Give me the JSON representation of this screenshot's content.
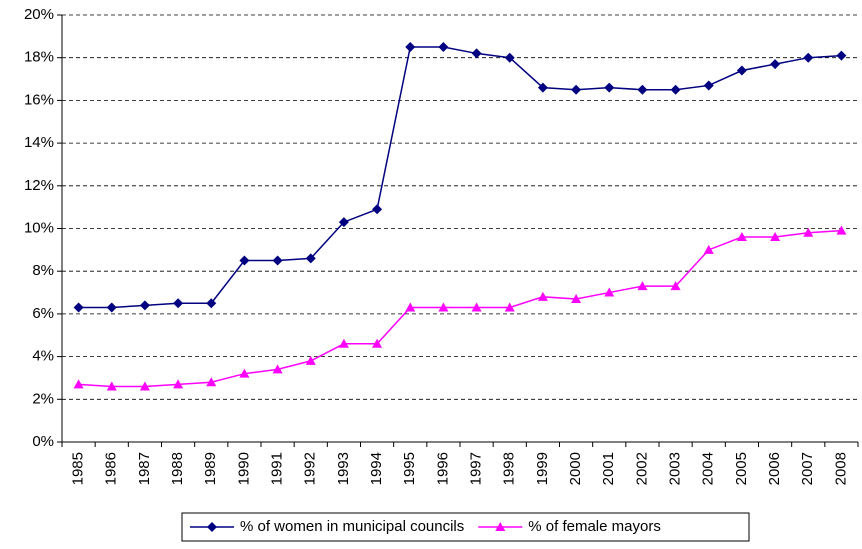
{
  "chart_data": {
    "type": "line",
    "categories": [
      "1985",
      "1986",
      "1987",
      "1988",
      "1989",
      "1990",
      "1991",
      "1992",
      "1993",
      "1994",
      "1995",
      "1996",
      "1997",
      "1998",
      "1999",
      "2000",
      "2001",
      "2002",
      "2003",
      "2004",
      "2005",
      "2006",
      "2007",
      "2008"
    ],
    "series": [
      {
        "name": "% of women in municipal councils",
        "color": "#000080",
        "marker": "diamond",
        "values": [
          6.3,
          6.3,
          6.4,
          6.5,
          6.5,
          8.5,
          8.5,
          8.6,
          10.3,
          10.9,
          18.5,
          18.5,
          18.2,
          18.0,
          16.6,
          16.5,
          16.6,
          16.5,
          16.5,
          16.7,
          17.4,
          17.7,
          18.0,
          18.1
        ]
      },
      {
        "name": "% of female mayors",
        "color": "#ff00ff",
        "marker": "triangle",
        "values": [
          2.7,
          2.6,
          2.6,
          2.7,
          2.8,
          3.2,
          3.4,
          3.8,
          4.6,
          4.6,
          6.3,
          6.3,
          6.3,
          6.3,
          6.8,
          6.7,
          7.0,
          7.3,
          7.3,
          9.0,
          9.6,
          9.6,
          9.8,
          9.9
        ]
      }
    ],
    "ylim": [
      0,
      20
    ],
    "yticks": [
      {
        "value": 0,
        "label": "0%"
      },
      {
        "value": 2,
        "label": "2%"
      },
      {
        "value": 4,
        "label": "4%"
      },
      {
        "value": 6,
        "label": "6%"
      },
      {
        "value": 8,
        "label": "8%"
      },
      {
        "value": 10,
        "label": "10%"
      },
      {
        "value": 12,
        "label": "12%"
      },
      {
        "value": 14,
        "label": "14%"
      },
      {
        "value": 16,
        "label": "16%"
      },
      {
        "value": 18,
        "label": "18%"
      },
      {
        "value": 20,
        "label": "20%"
      }
    ],
    "grid": true,
    "legend": "bottom"
  }
}
